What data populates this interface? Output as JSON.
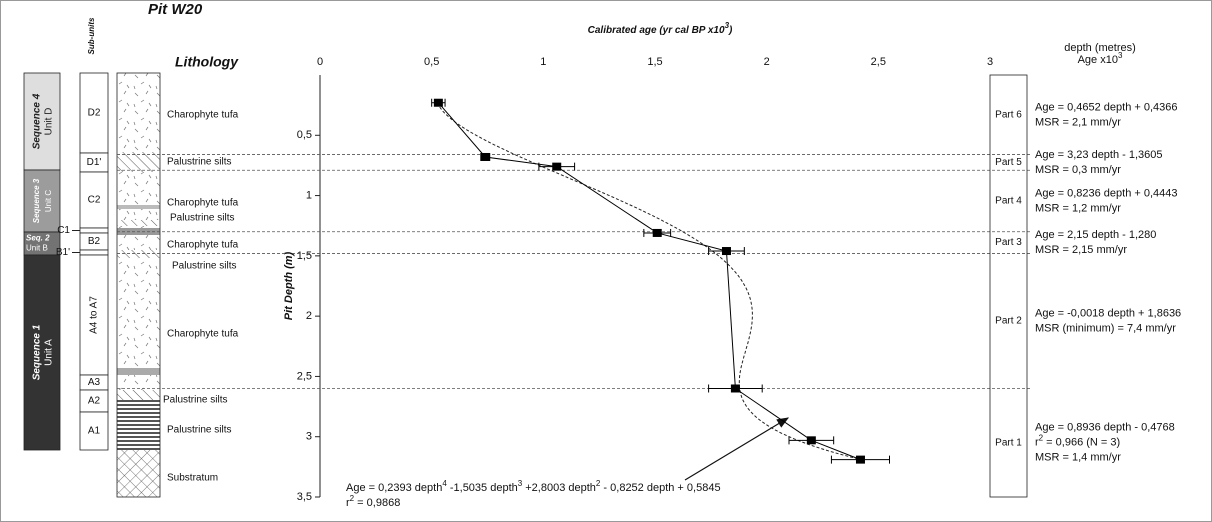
{
  "chart_data": {
    "type": "scatter",
    "title": "Pit W20",
    "x_label": [
      {
        "t": "Calibrated age (yr cal BP x10"
      },
      {
        "t": "3",
        "sup": true
      },
      {
        "t": ")"
      }
    ],
    "y_label": "Pit Depth (m)",
    "xlim": [
      0,
      3
    ],
    "xticks": [
      0,
      {
        "value": 0.5,
        "label": "0,5"
      },
      1,
      {
        "value": 1.5,
        "label": "1,5"
      },
      2,
      {
        "value": 2.5,
        "label": "2,5"
      },
      3
    ],
    "ylim": [
      0,
      3.5
    ],
    "yticks": [
      {
        "value": 0.5,
        "label": "0,5"
      },
      1,
      {
        "value": 1.5,
        "label": "1,5"
      },
      2,
      {
        "value": 2.5,
        "label": "2,5"
      },
      3,
      {
        "value": 3.5,
        "label": "3,5"
      }
    ],
    "y_inverted": true,
    "x": [
      0.53,
      0.74,
      1.06,
      1.51,
      1.82,
      1.86,
      2.2,
      2.42
    ],
    "values": [
      0.23,
      0.68,
      0.76,
      1.31,
      1.46,
      2.6,
      3.03,
      3.19
    ],
    "errors": [
      0.03,
      0.02,
      0.08,
      0.06,
      0.08,
      0.12,
      0.1,
      0.13
    ],
    "color": "#000000",
    "fit": {
      "coefficients": [
        0.2393,
        -1.5035,
        2.8003,
        -0.8252,
        0.5845
      ],
      "label": [
        {
          "t": "Age = 0,2393 depth"
        },
        {
          "t": "4",
          "sup": true
        },
        {
          "t": " -1,5035 depth"
        },
        {
          "t": "3",
          "sup": true
        },
        {
          "t": " +2,8003 depth"
        },
        {
          "t": "2",
          "sup": true
        },
        {
          "t": " - 0,8252 depth + 0,5845"
        }
      ],
      "r2_label": [
        {
          "t": "r"
        },
        {
          "t": "2",
          "sup": true
        },
        {
          "t": " = 0,9868"
        }
      ]
    },
    "boundaries": [
      0.66,
      0.79,
      1.3,
      1.48,
      2.6
    ],
    "right_heading": [
      [
        {
          "t": "depth (metres)"
        }
      ],
      [
        {
          "t": "Age x10"
        },
        {
          "t": "3",
          "sup": true
        }
      ]
    ],
    "parts": [
      {
        "name": "Part 6",
        "lines": [
          [
            {
              "t": "Age = 0,4652 depth + 0,4366"
            }
          ],
          [
            {
              "t": "MSR = 2,1 mm/yr"
            }
          ]
        ]
      },
      {
        "name": "Part 5",
        "lines": [
          [
            {
              "t": "Age = 3,23 depth - 1,3605"
            }
          ],
          [
            {
              "t": "MSR = 0,3 mm/yr"
            }
          ]
        ]
      },
      {
        "name": "Part 4",
        "lines": [
          [
            {
              "t": "Age = 0,8236 depth + 0,4443"
            }
          ],
          [
            {
              "t": "MSR = 1,2 mm/yr"
            }
          ]
        ]
      },
      {
        "name": "Part 3",
        "lines": [
          [
            {
              "t": "Age = 2,15 depth - 1,280"
            }
          ],
          [
            {
              "t": "MSR = 2,15 mm/yr"
            }
          ]
        ]
      },
      {
        "name": "Part 2",
        "lines": [
          [
            {
              "t": "Age = -0,0018 depth + 1,8636"
            }
          ],
          [
            {
              "t": "MSR (minimum) = 7,4 mm/yr"
            }
          ]
        ]
      },
      {
        "name": "Part 1",
        "lines": [
          [
            {
              "t": "Age = 0,8936 depth - 0,4768"
            }
          ],
          [
            {
              "t": "r"
            },
            {
              "t": "2",
              "sup": true
            },
            {
              "t": " = 0,966 (N = 3)"
            }
          ],
          [
            {
              "t": "MSR = 1,4 mm/yr"
            }
          ]
        ]
      }
    ]
  },
  "stratigraphy": {
    "subunits_heading": "Sub-units",
    "lithology_heading": "Lithology",
    "sequences": [
      {
        "name": "Sequence 4",
        "unit": "Unit D"
      },
      {
        "name": "Sequence 3",
        "unit": "Unit C"
      },
      {
        "name": "Seq. 2",
        "unit": "Unit B"
      },
      {
        "name": "Sequence 1",
        "unit": "Unit A"
      }
    ],
    "subunits": [
      "D2",
      "D1'",
      "C2",
      "C1",
      "B2",
      "B1'",
      "A4 to A7",
      "A3",
      "A2",
      "A1"
    ],
    "lithology": [
      "Charophyte tufa",
      "Palustrine silts",
      "Charophyte tufa",
      "Palustrine silts",
      "Charophyte tufa",
      "Palustrine silts",
      "Charophyte tufa",
      "Palustrine silts",
      "Palustrine silts",
      "Substratum"
    ]
  }
}
